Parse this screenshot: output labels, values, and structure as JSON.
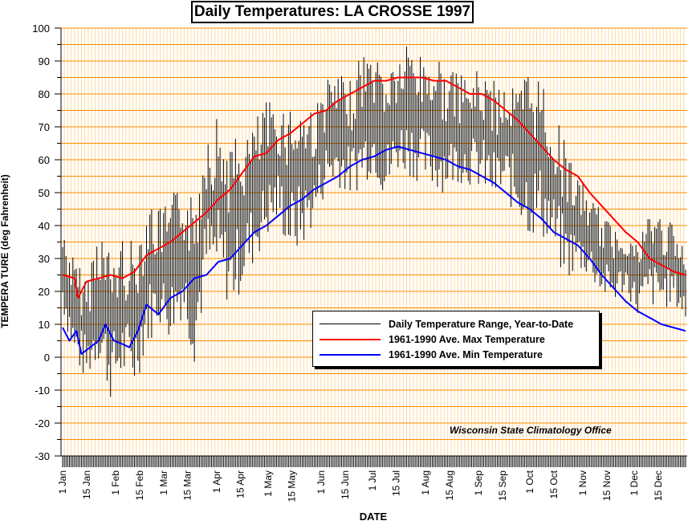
{
  "chart_data": {
    "type": "line",
    "title": "Daily Temperatures: LA CROSSE 1997",
    "xlabel": "DATE",
    "ylabel": "TEMPERA TURE (deg Fahrenheit)",
    "ylim": [
      -30,
      100
    ],
    "yticks": [
      -30,
      -20,
      -10,
      0,
      10,
      20,
      30,
      40,
      50,
      60,
      70,
      80,
      90,
      100
    ],
    "xlim": [
      1,
      365
    ],
    "x_unit": "day of year",
    "xtick_labels": [
      {
        "day": 1,
        "label": "1 Jan"
      },
      {
        "day": 15,
        "label": "15 Jan"
      },
      {
        "day": 32,
        "label": "1 Feb"
      },
      {
        "day": 46,
        "label": "15 Feb"
      },
      {
        "day": 60,
        "label": "1 Mar"
      },
      {
        "day": 74,
        "label": "15 Mar"
      },
      {
        "day": 91,
        "label": "1 Apr"
      },
      {
        "day": 105,
        "label": "15 Apr"
      },
      {
        "day": 121,
        "label": "1 May"
      },
      {
        "day": 135,
        "label": "15 May"
      },
      {
        "day": 152,
        "label": "1 Jun"
      },
      {
        "day": 166,
        "label": "15 Jun"
      },
      {
        "day": 182,
        "label": "1 Jul"
      },
      {
        "day": 196,
        "label": "15 Jul"
      },
      {
        "day": 213,
        "label": "1 Aug"
      },
      {
        "day": 227,
        "label": "15 Aug"
      },
      {
        "day": 244,
        "label": "1 Sep"
      },
      {
        "day": 258,
        "label": "15 Sep"
      },
      {
        "day": 274,
        "label": "1 Oct"
      },
      {
        "day": 288,
        "label": "15 Oct"
      },
      {
        "day": 305,
        "label": "1 Nov"
      },
      {
        "day": 319,
        "label": "15 Nov"
      },
      {
        "day": 335,
        "label": "1 Dec"
      },
      {
        "day": 349,
        "label": "15 Dec"
      }
    ],
    "grid": true,
    "legend_position": "center-right",
    "series": [
      {
        "name": "Daily Temperature Range, Year-to-Date",
        "kind": "range",
        "color": "#000000",
        "points": [
          {
            "x": 1,
            "low": 14,
            "high": 40
          },
          {
            "x": 8,
            "low": -3,
            "high": 30
          },
          {
            "x": 15,
            "low": -8,
            "high": 25
          },
          {
            "x": 22,
            "low": -2,
            "high": 43
          },
          {
            "x": 29,
            "low": -13,
            "high": 32
          },
          {
            "x": 36,
            "low": -8,
            "high": 38
          },
          {
            "x": 43,
            "low": -10,
            "high": 35
          },
          {
            "x": 50,
            "low": 2,
            "high": 50
          },
          {
            "x": 57,
            "low": 10,
            "high": 45
          },
          {
            "x": 64,
            "low": 5,
            "high": 48
          },
          {
            "x": 71,
            "low": 12,
            "high": 55
          },
          {
            "x": 78,
            "low": -2,
            "high": 48
          },
          {
            "x": 85,
            "low": 20,
            "high": 75
          },
          {
            "x": 92,
            "low": 22,
            "high": 74
          },
          {
            "x": 99,
            "low": 14,
            "high": 66
          },
          {
            "x": 106,
            "low": 20,
            "high": 68
          },
          {
            "x": 113,
            "low": 28,
            "high": 72
          },
          {
            "x": 120,
            "low": 35,
            "high": 78
          },
          {
            "x": 127,
            "low": 40,
            "high": 78
          },
          {
            "x": 134,
            "low": 30,
            "high": 78
          },
          {
            "x": 141,
            "low": 32,
            "high": 79
          },
          {
            "x": 148,
            "low": 40,
            "high": 76
          },
          {
            "x": 155,
            "low": 50,
            "high": 85
          },
          {
            "x": 162,
            "low": 52,
            "high": 86
          },
          {
            "x": 169,
            "low": 48,
            "high": 84
          },
          {
            "x": 176,
            "low": 52,
            "high": 94
          },
          {
            "x": 183,
            "low": 56,
            "high": 93
          },
          {
            "x": 190,
            "low": 46,
            "high": 90
          },
          {
            "x": 197,
            "low": 56,
            "high": 92
          },
          {
            "x": 204,
            "low": 55,
            "high": 97
          },
          {
            "x": 211,
            "low": 52,
            "high": 92
          },
          {
            "x": 218,
            "low": 50,
            "high": 94
          },
          {
            "x": 225,
            "low": 50,
            "high": 88
          },
          {
            "x": 232,
            "low": 53,
            "high": 86
          },
          {
            "x": 239,
            "low": 52,
            "high": 86
          },
          {
            "x": 246,
            "low": 50,
            "high": 88
          },
          {
            "x": 253,
            "low": 46,
            "high": 84
          },
          {
            "x": 260,
            "low": 47,
            "high": 86
          },
          {
            "x": 267,
            "low": 42,
            "high": 82
          },
          {
            "x": 274,
            "low": 36,
            "high": 90
          },
          {
            "x": 281,
            "low": 36,
            "high": 86
          },
          {
            "x": 288,
            "low": 30,
            "high": 74
          },
          {
            "x": 295,
            "low": 22,
            "high": 66
          },
          {
            "x": 302,
            "low": 26,
            "high": 55
          },
          {
            "x": 309,
            "low": 24,
            "high": 50
          },
          {
            "x": 316,
            "low": 18,
            "high": 44
          },
          {
            "x": 323,
            "low": 16,
            "high": 40
          },
          {
            "x": 330,
            "low": 20,
            "high": 40
          },
          {
            "x": 337,
            "low": 12,
            "high": 35
          },
          {
            "x": 344,
            "low": 15,
            "high": 46
          },
          {
            "x": 351,
            "low": 14,
            "high": 44
          },
          {
            "x": 358,
            "low": 16,
            "high": 40
          },
          {
            "x": 365,
            "low": 10,
            "high": 32
          }
        ]
      },
      {
        "name": "1961-1990 Ave. Max Temperature",
        "kind": "line",
        "color": "#ff0000",
        "points": [
          {
            "x": 1,
            "y": 25
          },
          {
            "x": 8,
            "y": 24
          },
          {
            "x": 10,
            "y": 18
          },
          {
            "x": 15,
            "y": 23
          },
          {
            "x": 22,
            "y": 24
          },
          {
            "x": 29,
            "y": 25
          },
          {
            "x": 36,
            "y": 24
          },
          {
            "x": 43,
            "y": 26
          },
          {
            "x": 50,
            "y": 31
          },
          {
            "x": 57,
            "y": 33
          },
          {
            "x": 64,
            "y": 35
          },
          {
            "x": 71,
            "y": 38
          },
          {
            "x": 78,
            "y": 41
          },
          {
            "x": 85,
            "y": 44
          },
          {
            "x": 92,
            "y": 48
          },
          {
            "x": 99,
            "y": 51
          },
          {
            "x": 106,
            "y": 56
          },
          {
            "x": 113,
            "y": 61
          },
          {
            "x": 120,
            "y": 62
          },
          {
            "x": 127,
            "y": 66
          },
          {
            "x": 134,
            "y": 68
          },
          {
            "x": 141,
            "y": 71
          },
          {
            "x": 148,
            "y": 74
          },
          {
            "x": 155,
            "y": 75
          },
          {
            "x": 162,
            "y": 78
          },
          {
            "x": 169,
            "y": 80
          },
          {
            "x": 176,
            "y": 82
          },
          {
            "x": 183,
            "y": 84
          },
          {
            "x": 190,
            "y": 84
          },
          {
            "x": 197,
            "y": 85
          },
          {
            "x": 204,
            "y": 85
          },
          {
            "x": 211,
            "y": 85
          },
          {
            "x": 218,
            "y": 84
          },
          {
            "x": 225,
            "y": 84
          },
          {
            "x": 232,
            "y": 82
          },
          {
            "x": 239,
            "y": 80
          },
          {
            "x": 246,
            "y": 80
          },
          {
            "x": 253,
            "y": 78
          },
          {
            "x": 260,
            "y": 75
          },
          {
            "x": 267,
            "y": 72
          },
          {
            "x": 274,
            "y": 68
          },
          {
            "x": 281,
            "y": 64
          },
          {
            "x": 288,
            "y": 60
          },
          {
            "x": 295,
            "y": 57
          },
          {
            "x": 302,
            "y": 55
          },
          {
            "x": 309,
            "y": 50
          },
          {
            "x": 316,
            "y": 46
          },
          {
            "x": 323,
            "y": 42
          },
          {
            "x": 330,
            "y": 38
          },
          {
            "x": 337,
            "y": 35
          },
          {
            "x": 344,
            "y": 30
          },
          {
            "x": 351,
            "y": 28
          },
          {
            "x": 358,
            "y": 26
          },
          {
            "x": 365,
            "y": 25
          }
        ]
      },
      {
        "name": "1961-1990 Ave. Min Temperature",
        "kind": "line",
        "color": "#0000ff",
        "points": [
          {
            "x": 1,
            "y": 9
          },
          {
            "x": 5,
            "y": 5
          },
          {
            "x": 9,
            "y": 8
          },
          {
            "x": 12,
            "y": 1
          },
          {
            "x": 17,
            "y": 3
          },
          {
            "x": 22,
            "y": 5
          },
          {
            "x": 26,
            "y": 10
          },
          {
            "x": 31,
            "y": 5
          },
          {
            "x": 36,
            "y": 4
          },
          {
            "x": 40,
            "y": 3
          },
          {
            "x": 45,
            "y": 8
          },
          {
            "x": 50,
            "y": 16
          },
          {
            "x": 57,
            "y": 13
          },
          {
            "x": 64,
            "y": 18
          },
          {
            "x": 71,
            "y": 20
          },
          {
            "x": 78,
            "y": 24
          },
          {
            "x": 85,
            "y": 25
          },
          {
            "x": 92,
            "y": 29
          },
          {
            "x": 99,
            "y": 30
          },
          {
            "x": 106,
            "y": 34
          },
          {
            "x": 113,
            "y": 38
          },
          {
            "x": 120,
            "y": 40
          },
          {
            "x": 127,
            "y": 43
          },
          {
            "x": 134,
            "y": 46
          },
          {
            "x": 141,
            "y": 48
          },
          {
            "x": 148,
            "y": 51
          },
          {
            "x": 155,
            "y": 53
          },
          {
            "x": 162,
            "y": 55
          },
          {
            "x": 169,
            "y": 58
          },
          {
            "x": 176,
            "y": 60
          },
          {
            "x": 183,
            "y": 61
          },
          {
            "x": 190,
            "y": 63
          },
          {
            "x": 197,
            "y": 64
          },
          {
            "x": 204,
            "y": 63
          },
          {
            "x": 211,
            "y": 62
          },
          {
            "x": 218,
            "y": 61
          },
          {
            "x": 225,
            "y": 60
          },
          {
            "x": 232,
            "y": 58
          },
          {
            "x": 239,
            "y": 57
          },
          {
            "x": 246,
            "y": 55
          },
          {
            "x": 253,
            "y": 53
          },
          {
            "x": 260,
            "y": 50
          },
          {
            "x": 267,
            "y": 47
          },
          {
            "x": 274,
            "y": 45
          },
          {
            "x": 281,
            "y": 42
          },
          {
            "x": 288,
            "y": 38
          },
          {
            "x": 295,
            "y": 36
          },
          {
            "x": 302,
            "y": 34
          },
          {
            "x": 309,
            "y": 30
          },
          {
            "x": 316,
            "y": 25
          },
          {
            "x": 323,
            "y": 21
          },
          {
            "x": 330,
            "y": 17
          },
          {
            "x": 337,
            "y": 14
          },
          {
            "x": 344,
            "y": 12
          },
          {
            "x": 351,
            "y": 10
          },
          {
            "x": 358,
            "y": 9
          },
          {
            "x": 365,
            "y": 8
          }
        ]
      }
    ]
  },
  "credit": "Wisconsin State Climatology Office",
  "colors": {
    "grid_major": "#ff8c00",
    "grid_minor": "#ffd9a0",
    "range": "#000000",
    "max": "#ff0000",
    "min": "#0000ff"
  }
}
